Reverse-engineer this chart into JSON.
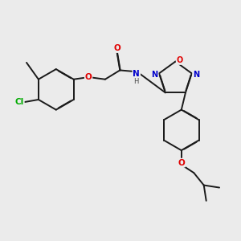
{
  "bg_color": "#ebebeb",
  "bond_color": "#1a1a1a",
  "atom_colors": {
    "O": "#e00000",
    "N": "#0000cc",
    "Cl": "#00aa00",
    "H": "#444444",
    "C": "#1a1a1a"
  },
  "lw": 1.4,
  "dbo": 0.012,
  "fs": 7.5
}
